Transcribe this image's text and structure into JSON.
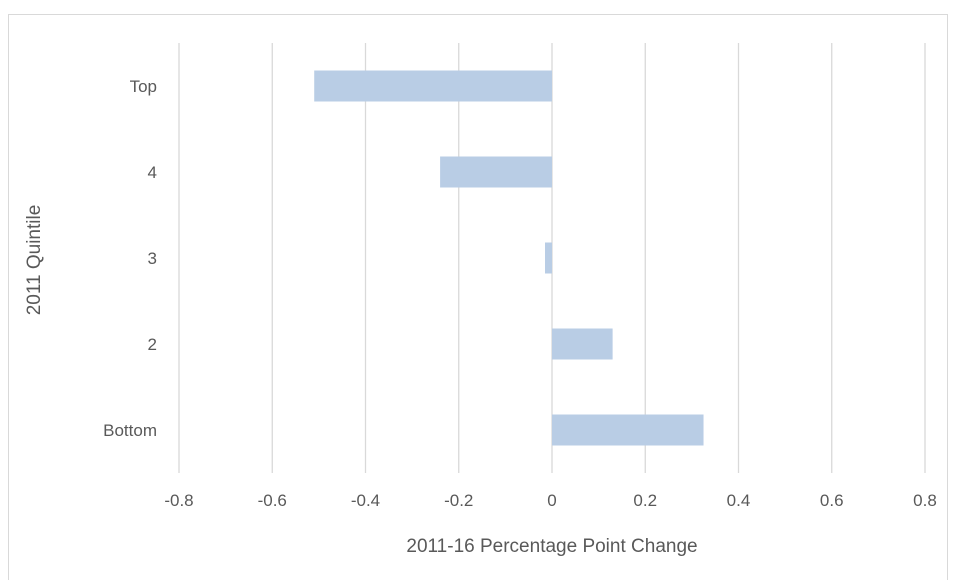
{
  "chart_data": {
    "type": "bar",
    "orientation": "horizontal",
    "categories": [
      "Top",
      "4",
      "3",
      "2",
      "Bottom"
    ],
    "values": [
      -0.51,
      -0.24,
      -0.015,
      0.13,
      0.325
    ],
    "title": "",
    "xlabel": "2011-16 Percentage Point Change",
    "ylabel": "2011 Quintile",
    "xlim": [
      -0.8,
      0.8
    ],
    "xticks": [
      "-0.8",
      "-0.6",
      "-0.4",
      "-0.2",
      "0",
      "0.2",
      "0.4",
      "0.6",
      "0.8"
    ],
    "grid": "vertical",
    "legend": "none",
    "bar_color": "#b9cde5",
    "grid_color": "#d9d9d9"
  }
}
